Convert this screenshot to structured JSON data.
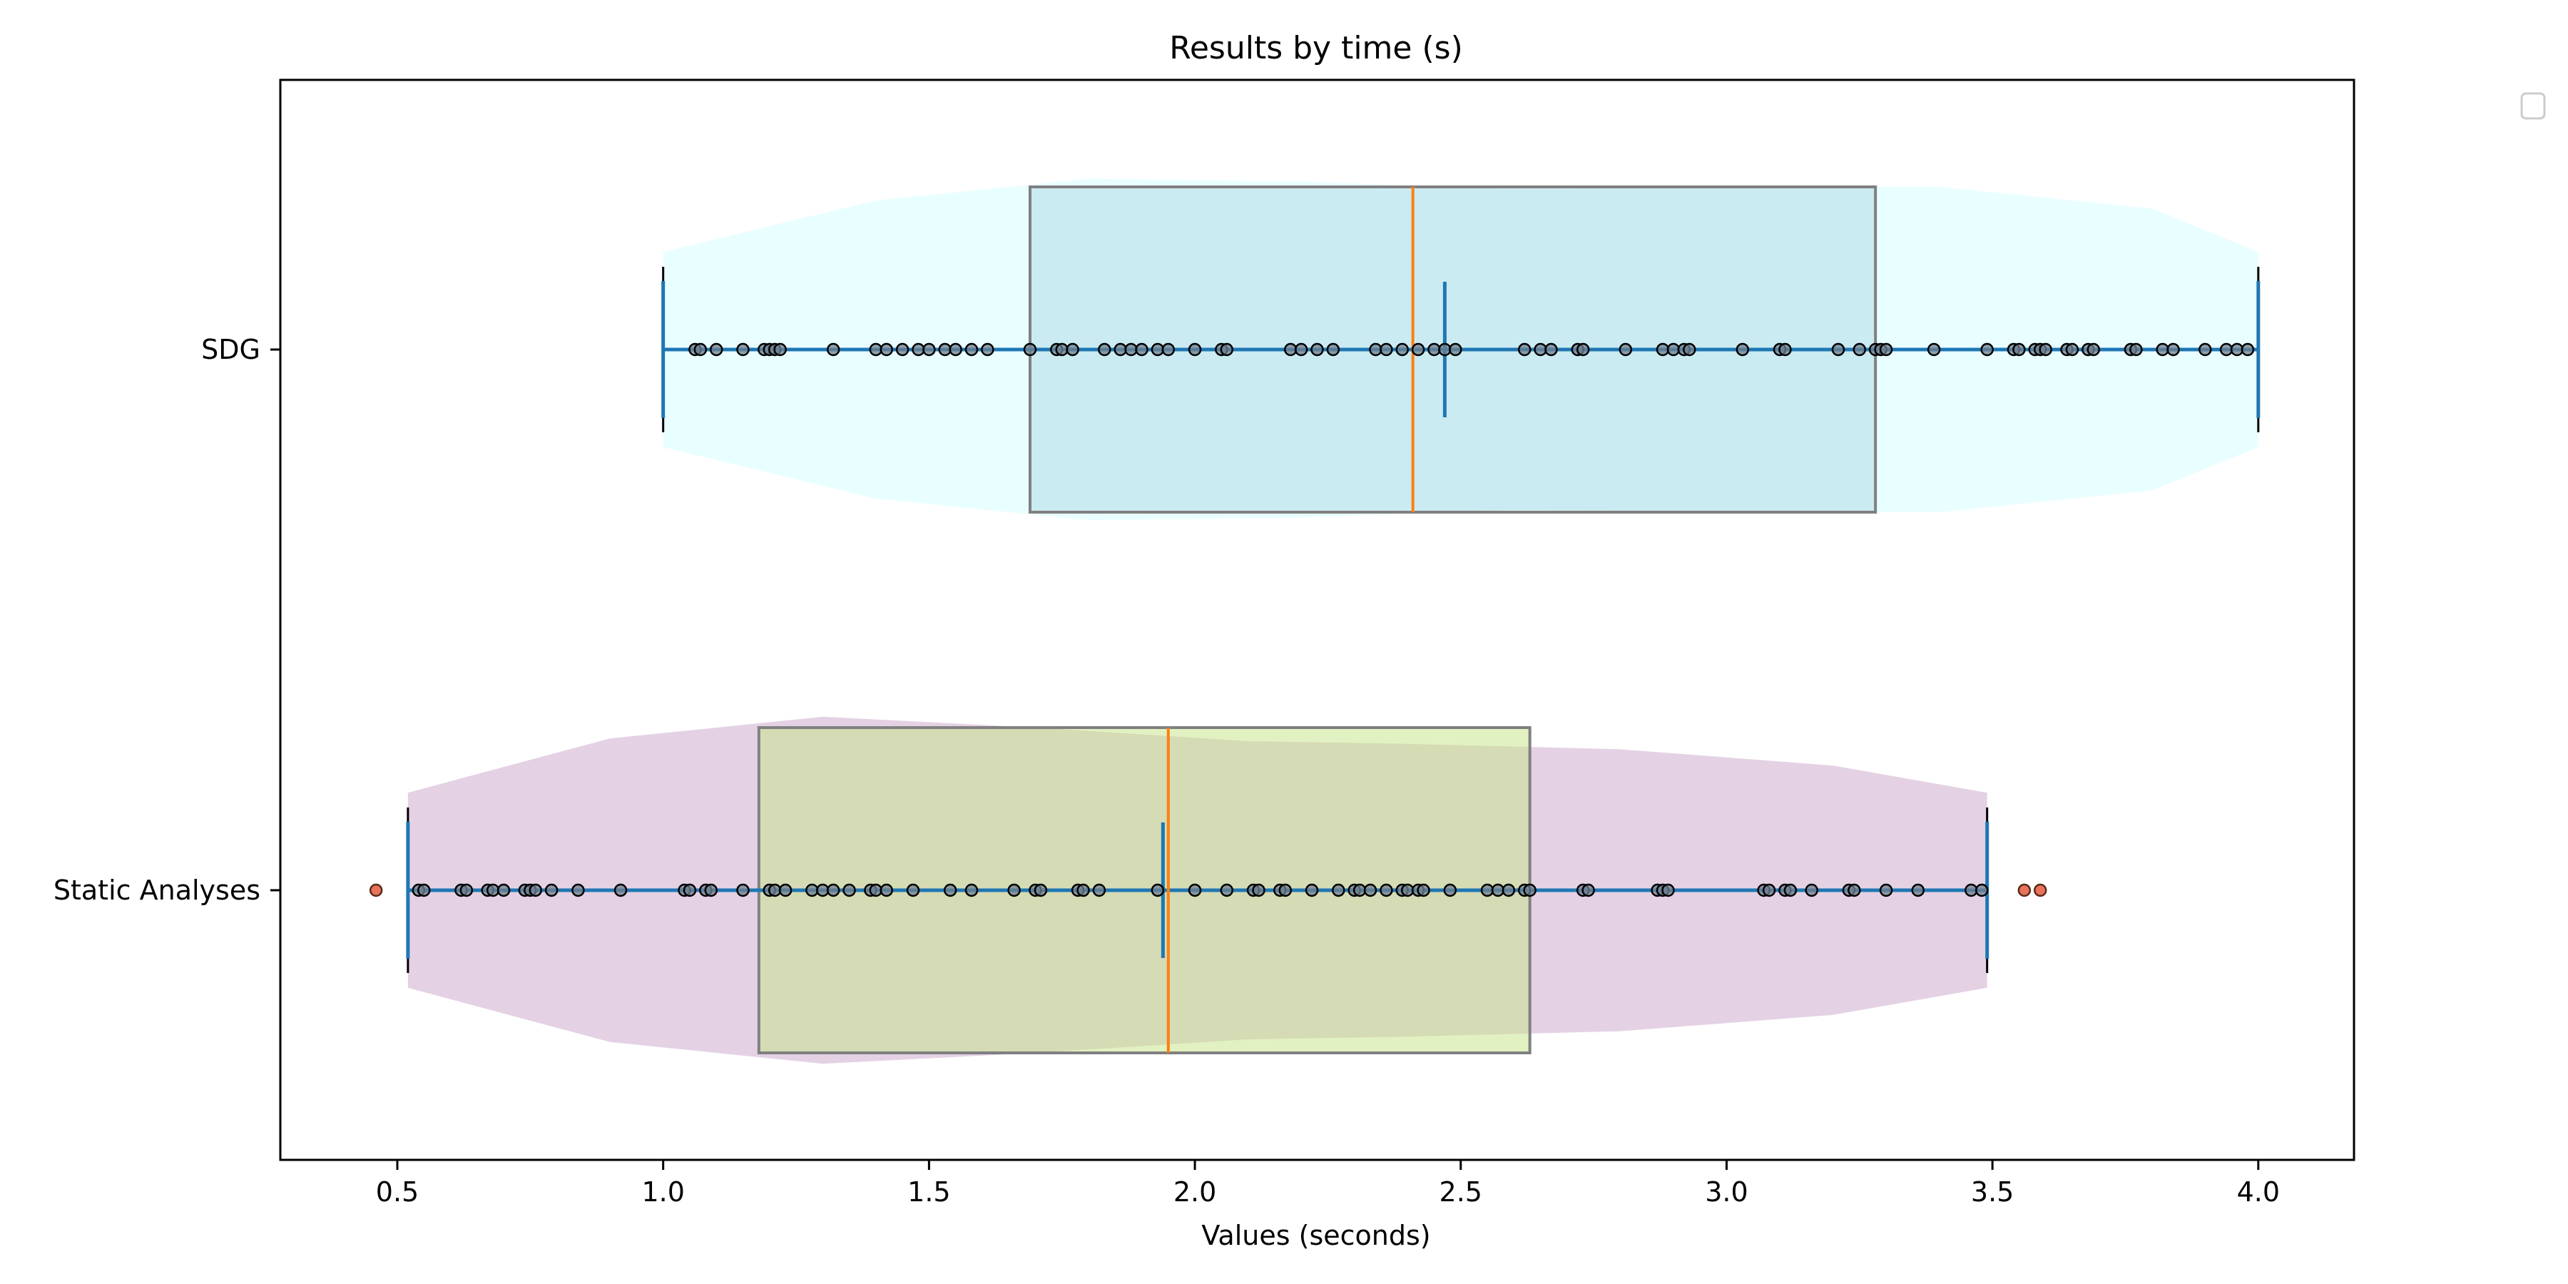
{
  "chart_data": {
    "type": "boxplot-violin-strip",
    "orientation": "horizontal",
    "title": "Results by time (s)",
    "xlabel": "Values (seconds)",
    "ylabel": "",
    "xlim": [
      0.28,
      4.18
    ],
    "xticks": [
      0.5,
      1.0,
      1.5,
      2.0,
      2.5,
      3.0,
      3.5,
      4.0
    ],
    "xtick_labels": [
      "0.5",
      "1.0",
      "1.5",
      "2.0",
      "2.5",
      "3.0",
      "3.5",
      "4.0"
    ],
    "grid": false,
    "legend": {
      "placement": "outside-top-right",
      "entries": []
    },
    "colors": {
      "whisker_line": "#1f77b4",
      "median_line": "#ff7f0e",
      "point_fill": "#708090",
      "point_edge": "#000000",
      "outlier_fill": "#e8735a"
    },
    "categories": [
      {
        "name": "SDG",
        "violin_color": "#e0ffff",
        "box_color": "#add8e6",
        "q1": 1.69,
        "median": 2.41,
        "q3": 3.28,
        "mean": 2.47,
        "whisker_low": 1.0,
        "whisker_high": 4.0,
        "violin_width": [
          [
            1.0,
            0.36
          ],
          [
            1.4,
            0.55
          ],
          [
            1.8,
            0.63
          ],
          [
            2.2,
            0.62
          ],
          [
            2.6,
            0.59
          ],
          [
            3.0,
            0.6
          ],
          [
            3.4,
            0.6
          ],
          [
            3.8,
            0.52
          ],
          [
            4.0,
            0.36
          ]
        ],
        "points": [
          1.06,
          1.07,
          1.1,
          1.15,
          1.19,
          1.2,
          1.21,
          1.22,
          1.32,
          1.4,
          1.42,
          1.45,
          1.48,
          1.5,
          1.53,
          1.55,
          1.58,
          1.61,
          1.69,
          1.74,
          1.75,
          1.77,
          1.83,
          1.86,
          1.88,
          1.9,
          1.93,
          1.95,
          2.0,
          2.05,
          2.06,
          2.18,
          2.2,
          2.23,
          2.26,
          2.34,
          2.36,
          2.39,
          2.42,
          2.45,
          2.47,
          2.49,
          2.62,
          2.65,
          2.67,
          2.72,
          2.73,
          2.81,
          2.88,
          2.9,
          2.92,
          2.93,
          3.03,
          3.1,
          3.11,
          3.21,
          3.25,
          3.28,
          3.29,
          3.3,
          3.39,
          3.49,
          3.54,
          3.55,
          3.58,
          3.59,
          3.6,
          3.64,
          3.65,
          3.68,
          3.69,
          3.76,
          3.77,
          3.82,
          3.84,
          3.9,
          3.94,
          3.96,
          3.98
        ],
        "outliers": []
      },
      {
        "name": "Static Analyses",
        "violin_color": "#d8bfd8",
        "box_color": "#c5e384",
        "q1": 1.18,
        "median": 1.95,
        "q3": 2.63,
        "mean": 1.94,
        "whisker_low": 0.52,
        "whisker_high": 3.49,
        "violin_width": [
          [
            0.52,
            0.36
          ],
          [
            0.9,
            0.56
          ],
          [
            1.3,
            0.64
          ],
          [
            1.7,
            0.6
          ],
          [
            2.1,
            0.55
          ],
          [
            2.4,
            0.54
          ],
          [
            2.8,
            0.52
          ],
          [
            3.2,
            0.46
          ],
          [
            3.49,
            0.36
          ]
        ],
        "points": [
          0.54,
          0.55,
          0.62,
          0.63,
          0.67,
          0.68,
          0.7,
          0.74,
          0.75,
          0.76,
          0.79,
          0.84,
          0.92,
          1.04,
          1.05,
          1.08,
          1.09,
          1.15,
          1.2,
          1.21,
          1.23,
          1.28,
          1.3,
          1.32,
          1.35,
          1.39,
          1.4,
          1.42,
          1.47,
          1.54,
          1.58,
          1.66,
          1.7,
          1.71,
          1.78,
          1.79,
          1.82,
          1.93,
          2.0,
          2.06,
          2.11,
          2.12,
          2.16,
          2.17,
          2.22,
          2.27,
          2.3,
          2.31,
          2.33,
          2.36,
          2.39,
          2.4,
          2.42,
          2.43,
          2.48,
          2.55,
          2.57,
          2.59,
          2.62,
          2.63,
          2.73,
          2.74,
          2.87,
          2.88,
          2.89,
          3.07,
          3.08,
          3.11,
          3.12,
          3.16,
          3.23,
          3.24,
          3.3,
          3.36,
          3.46,
          3.48
        ],
        "outliers": [
          0.46,
          3.56,
          3.59
        ]
      }
    ]
  }
}
